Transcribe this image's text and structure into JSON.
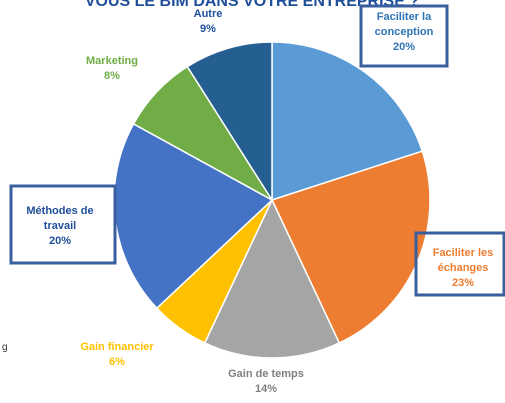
{
  "chart_data": {
    "type": "pie",
    "title": "VOUS LE BIM DANS VOTRE ENTREPRISE ?",
    "start_angle_deg": 0,
    "direction": "clockwise",
    "slices": [
      {
        "label": "Faciliter la conception",
        "value": 20,
        "pct": "20%",
        "color": "#5b9bd5",
        "label_color": "#2e74b5",
        "boxed": true
      },
      {
        "label": "Faciliter les échanges",
        "value": 23,
        "pct": "23%",
        "color": "#ed7d31",
        "label_color": "#ed7d31",
        "boxed": true
      },
      {
        "label": "Gain de temps",
        "value": 14,
        "pct": "14%",
        "color": "#a5a5a5",
        "label_color": "#7f7f7f",
        "boxed": false
      },
      {
        "label": "Gain financier",
        "value": 6,
        "pct": "6%",
        "color": "#ffc000",
        "label_color": "#ffc000",
        "boxed": false
      },
      {
        "label": "Méthodes de travail",
        "value": 20,
        "pct": "20%",
        "color": "#4472c4",
        "label_color": "#1f4e9b",
        "boxed": true
      },
      {
        "label": "Marketing",
        "value": 8,
        "pct": "8%",
        "color": "#70ad47",
        "label_color": "#70ad47",
        "boxed": false
      },
      {
        "label": "Autre",
        "value": 9,
        "pct": "9%",
        "color": "#255e91",
        "label_color": "#1f4e9b",
        "boxed": false
      }
    ],
    "label_box_color": "#3a5f9e"
  },
  "side_text": "g"
}
